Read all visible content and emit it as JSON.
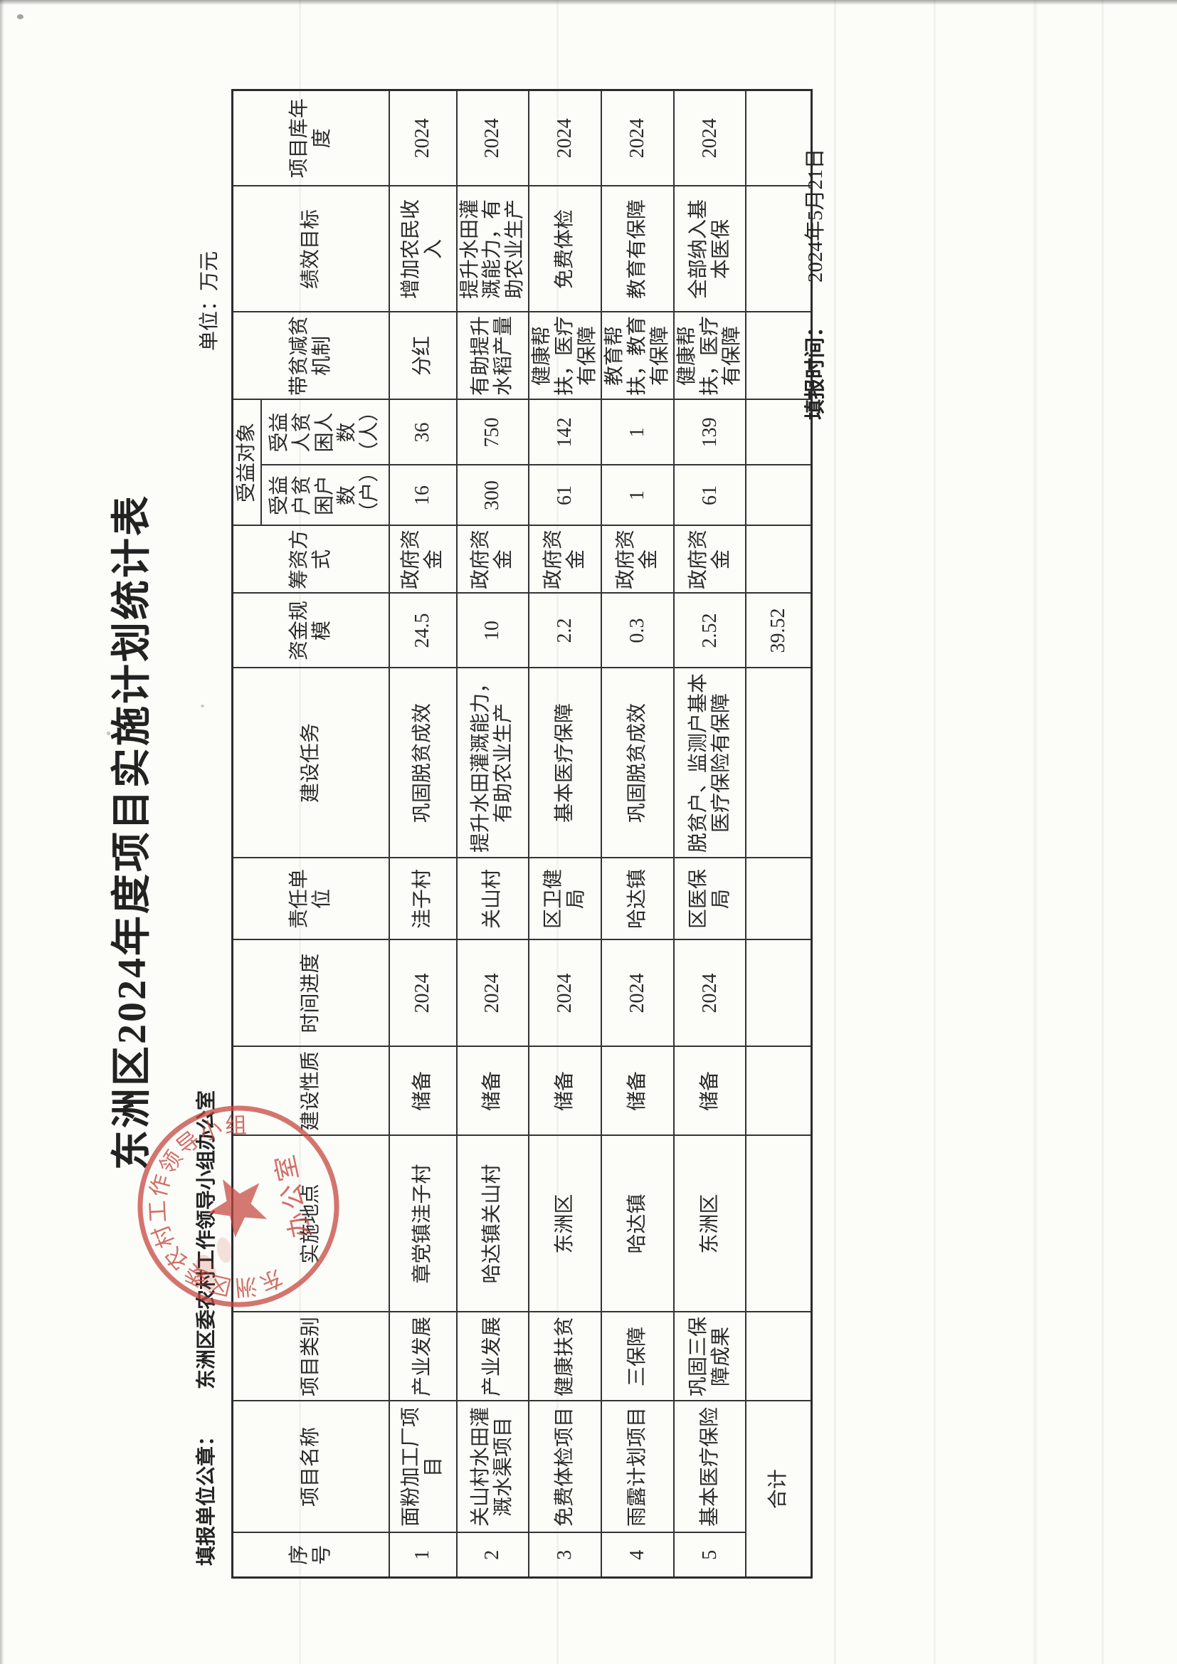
{
  "document": {
    "title": "东洲区2024年度项目实施计划统计表",
    "meta": {
      "stamp_label": "填报单位公章：",
      "stamp_unit": "东洲区委农村工作领导小组办公室",
      "unit_note": "单位：万元"
    },
    "footer": {
      "label": "填报时间：",
      "value": "2024年5月21日"
    },
    "stamp": {
      "ring_text": "东洲区委农村工作领导小组",
      "bottom_text": "办公室",
      "color": "#c4463d"
    },
    "table": {
      "headers": [
        "序号",
        "项目名称",
        "项目类别",
        "实施地点",
        "建设性质",
        "时间进度",
        "责任单位",
        "建设任务",
        "资金规模",
        "筹资方式",
        "受益对象",
        "带贫减贫机制",
        "绩效目标",
        "项目库年度"
      ],
      "sub_headers": [
        "受益户贫困户数（户）",
        "受益人贫困人数（人）"
      ],
      "rows": [
        [
          "1",
          "面粉加工厂项目",
          "产业发展",
          "章党镇洼子村",
          "储备",
          "2024",
          "洼子村",
          "巩固脱贫成效",
          "24.5",
          "政府资金",
          "16",
          "36",
          "分红",
          "增加农民收入",
          "2024"
        ],
        [
          "2",
          "关山村水田灌溉水渠项目",
          "产业发展",
          "哈达镇关山村",
          "储备",
          "2024",
          "关山村",
          "提升水田灌溉能力，有助农业生产",
          "10",
          "政府资金",
          "300",
          "750",
          "有助提升水稻产量",
          "提升水田灌溉能力，有助农业生产",
          "2024"
        ],
        [
          "3",
          "免费体检项目",
          "健康扶贫",
          "东洲区",
          "储备",
          "2024",
          "区卫健局",
          "基本医疗保障",
          "2.2",
          "政府资金",
          "61",
          "142",
          "健康帮扶，医疗有保障",
          "免费体检",
          "2024"
        ],
        [
          "4",
          "雨露计划项目",
          "三保障",
          "哈达镇",
          "储备",
          "2024",
          "哈达镇",
          "巩固脱贫成效",
          "0.3",
          "政府资金",
          "1",
          "1",
          "教育帮扶，教育有保障",
          "教育有保障",
          "2024"
        ],
        [
          "5",
          "基本医疗保险",
          "巩固三保障成果",
          "东洲区",
          "储备",
          "2024",
          "区医保局",
          "脱贫户、监测户基本医疗保险有保障",
          "2.52",
          "政府资金",
          "61",
          "139",
          "健康帮扶，医疗有保障",
          "全部纳入基本医保",
          "2024"
        ]
      ],
      "total_row": [
        "合计",
        "",
        "",
        "",
        "",
        "",
        "",
        "39.52",
        "",
        "",
        "",
        "",
        "",
        ""
      ]
    }
  }
}
